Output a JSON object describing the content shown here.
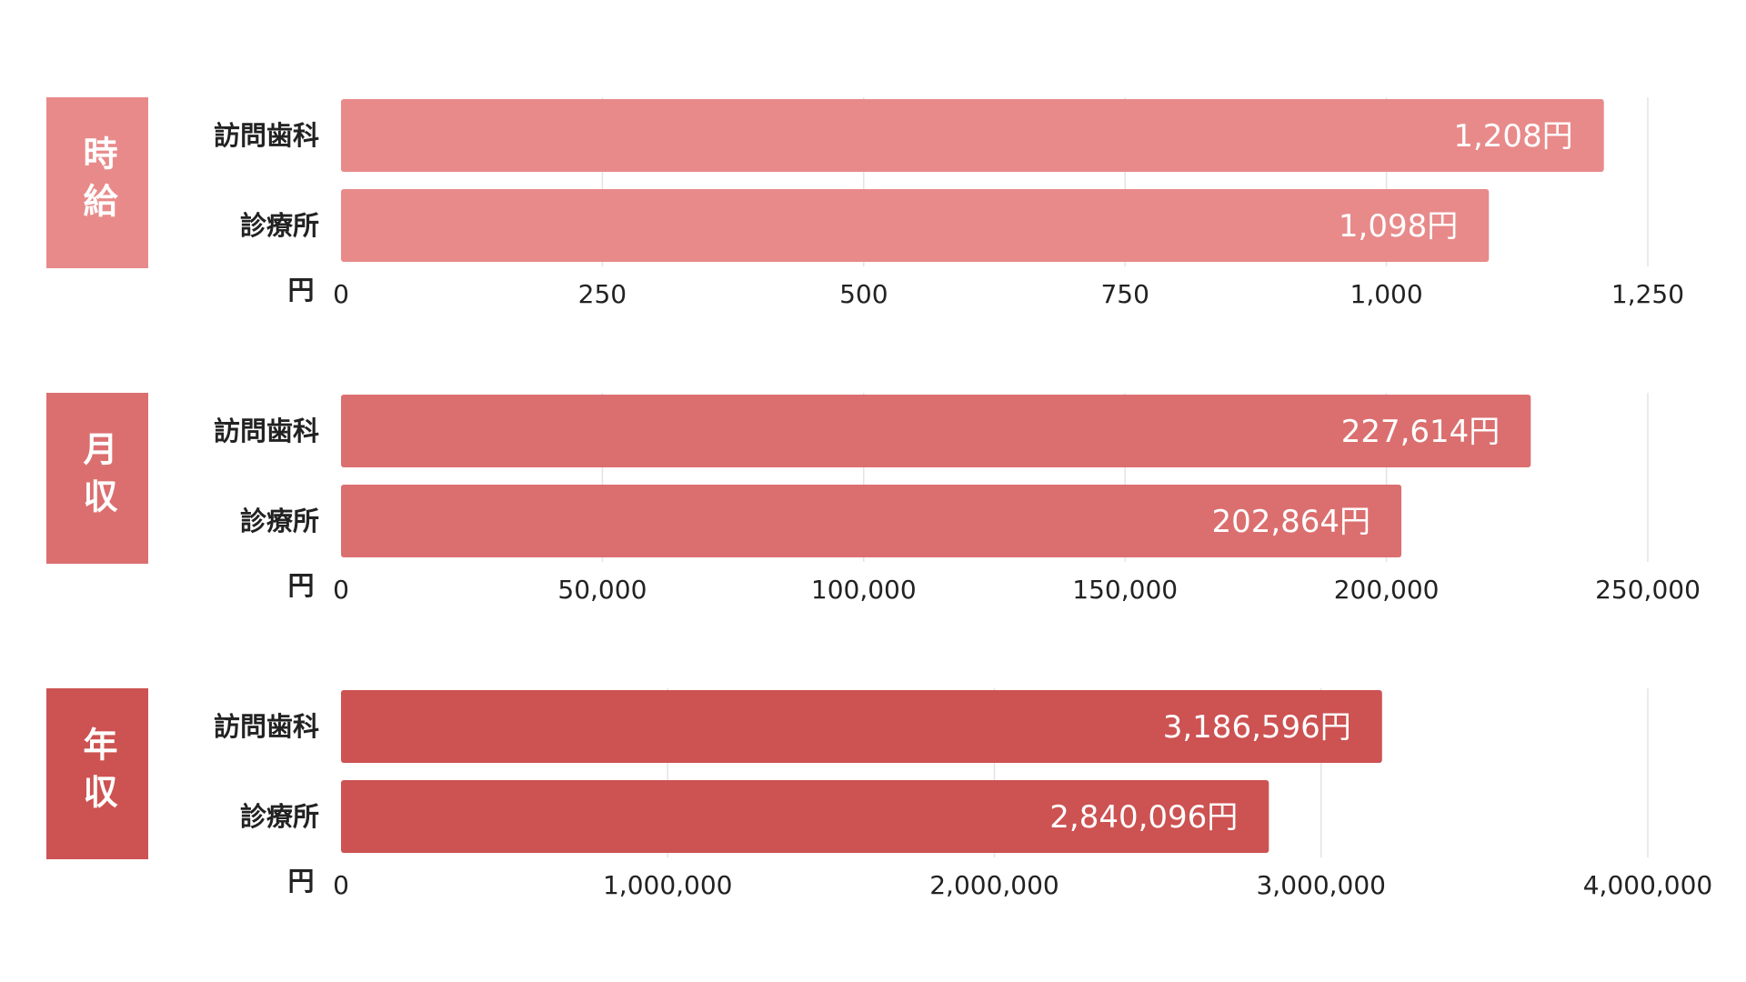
{
  "chart_data": [
    {
      "type": "bar",
      "orientation": "horizontal",
      "title": "時給",
      "categories": [
        "訪問歯科",
        "診療所"
      ],
      "values": [
        1208,
        1098
      ],
      "value_labels": [
        "1,208円",
        "1,098円"
      ],
      "unit": "円",
      "xlim": [
        0,
        1250
      ],
      "ticks": [
        0,
        250,
        500,
        750,
        1000,
        1250
      ],
      "tick_labels": [
        "0",
        "250",
        "500",
        "750",
        "1,000",
        "1,250"
      ],
      "color": "#e88a8a",
      "grid": true
    },
    {
      "type": "bar",
      "orientation": "horizontal",
      "title": "月収",
      "categories": [
        "訪問歯科",
        "診療所"
      ],
      "values": [
        227614,
        202864
      ],
      "value_labels": [
        "227,614円",
        "202,864円"
      ],
      "unit": "円",
      "xlim": [
        0,
        250000
      ],
      "ticks": [
        0,
        50000,
        100000,
        150000,
        200000,
        250000
      ],
      "tick_labels": [
        "0",
        "50,000",
        "100,000",
        "150,000",
        "200,000",
        "250,000"
      ],
      "color": "#db6f6f",
      "grid": true
    },
    {
      "type": "bar",
      "orientation": "horizontal",
      "title": "年収",
      "categories": [
        "訪問歯科",
        "診療所"
      ],
      "values": [
        3186596,
        2840096
      ],
      "value_labels": [
        "3,186,596円",
        "2,840,096円"
      ],
      "unit": "円",
      "xlim": [
        0,
        4000000
      ],
      "ticks": [
        0,
        1000000,
        2000000,
        3000000,
        4000000
      ],
      "tick_labels": [
        "0",
        "1,000,000",
        "2,000,000",
        "3,000,000",
        "4,000,000"
      ],
      "color": "#cd5252",
      "grid": true
    }
  ]
}
